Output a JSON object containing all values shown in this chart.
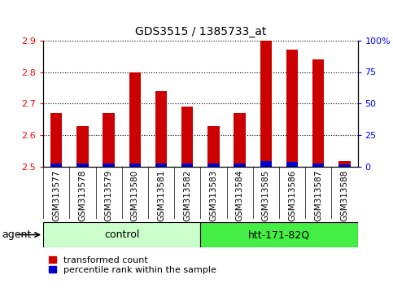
{
  "title": "GDS3515 / 1385733_at",
  "categories": [
    "GSM313577",
    "GSM313578",
    "GSM313579",
    "GSM313580",
    "GSM313581",
    "GSM313582",
    "GSM313583",
    "GSM313584",
    "GSM313585",
    "GSM313586",
    "GSM313587",
    "GSM313588"
  ],
  "transformed_count": [
    2.67,
    2.63,
    2.67,
    2.8,
    2.74,
    2.69,
    2.63,
    2.67,
    2.9,
    2.87,
    2.84,
    2.52
  ],
  "percentile_rank": [
    3,
    3,
    3,
    3,
    3,
    3,
    3,
    3,
    5,
    4,
    3,
    2
  ],
  "ylim_left": [
    2.5,
    2.9
  ],
  "ylim_right": [
    0,
    100
  ],
  "yticks_left": [
    2.5,
    2.6,
    2.7,
    2.8,
    2.9
  ],
  "yticks_right": [
    0,
    25,
    50,
    75,
    100
  ],
  "bar_color_red": "#cc0000",
  "bar_color_blue": "#0000cc",
  "control_label": "control",
  "treatment_label": "htt-171-82Q",
  "agent_label": "agent",
  "control_color": "#ccffcc",
  "treatment_color": "#44ee44",
  "control_indices": [
    0,
    1,
    2,
    3,
    4,
    5
  ],
  "treatment_indices": [
    6,
    7,
    8,
    9,
    10,
    11
  ],
  "legend_red": "transformed count",
  "legend_blue": "percentile rank within the sample",
  "tick_bg_color": "#d8d8d8"
}
